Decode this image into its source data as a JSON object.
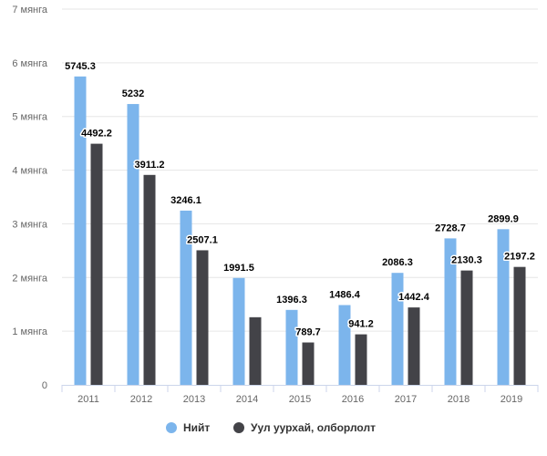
{
  "chart_data": {
    "type": "bar",
    "categories": [
      "2011",
      "2012",
      "2013",
      "2014",
      "2015",
      "2016",
      "2017",
      "2018",
      "2019"
    ],
    "series": [
      {
        "name": "Нийт",
        "color": "#7cb5ec",
        "values": [
          5745.3,
          5232,
          3246.1,
          1991.5,
          1396.3,
          1486.4,
          2086.3,
          2728.7,
          2899.9
        ],
        "labels": [
          "5745.3",
          "5232",
          "3246.1",
          "1991.5",
          "1396.3",
          "1486.4",
          "2086.3",
          "2728.7",
          "2899.9"
        ]
      },
      {
        "name": "Уул уурхай, олборлолт",
        "color": "#434348",
        "values": [
          4492.2,
          3911.2,
          2507.1,
          1260,
          789.7,
          941.2,
          1442.4,
          2130.3,
          2197.2
        ],
        "labels": [
          "4492.2",
          "3911.2",
          "2507.1",
          "",
          "789.7",
          "941.2",
          "1442.4",
          "2130.3",
          "2197.2"
        ]
      }
    ],
    "ylim": [
      0,
      7000
    ],
    "yticks": [
      {
        "value": 0,
        "label": "0"
      },
      {
        "value": 1000,
        "label": "1 мянга"
      },
      {
        "value": 2000,
        "label": "2 мянга"
      },
      {
        "value": 3000,
        "label": "3 мянга"
      },
      {
        "value": 4000,
        "label": "4 мянга"
      },
      {
        "value": 5000,
        "label": "5 мянга"
      },
      {
        "value": 6000,
        "label": "6 мянга"
      },
      {
        "value": 7000,
        "label": "7 мянга"
      }
    ],
    "grid": true,
    "legend_position": "bottom-center"
  }
}
